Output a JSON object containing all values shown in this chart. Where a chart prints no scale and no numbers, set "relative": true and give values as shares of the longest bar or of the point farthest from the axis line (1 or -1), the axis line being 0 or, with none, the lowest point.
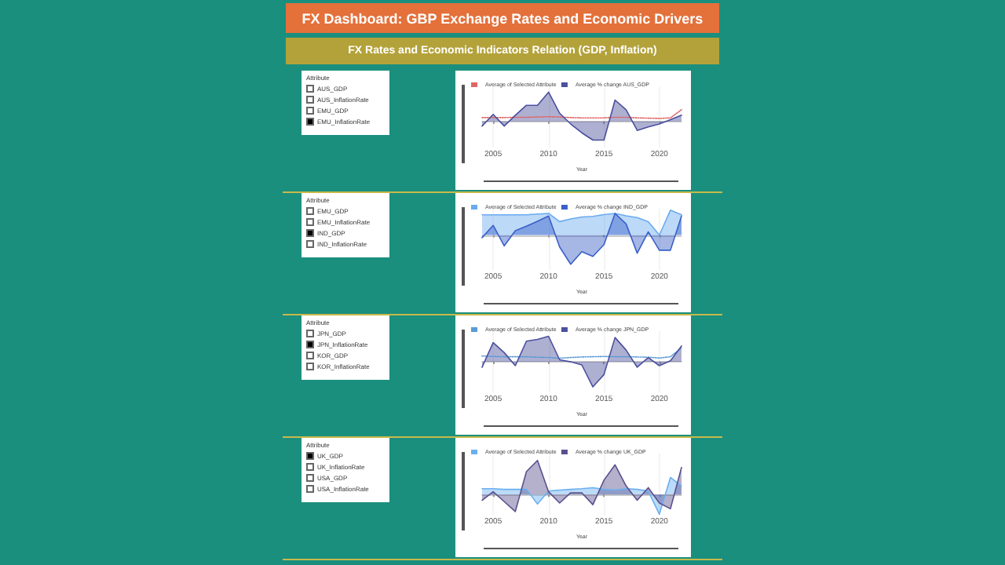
{
  "chart_data": [
    {
      "type": "other",
      "title": "FX Dashboard: GBP Exchange Rates and Economic Drivers",
      "subtitle": "FX Rates and Economic Indicators Relation (GDP, Inflation)",
      "legend_title": "Attribute",
      "categories": [
        "AUS_GDP",
        "AUS_InflationRate",
        "EMU_GDP",
        "EMU_InflationRate"
      ]
    },
    {
      "type": "line",
      "relative": true,
      "xlabel": "Year",
      "x": [
        2004,
        2005,
        2006,
        2007,
        2008,
        2009,
        2010,
        2011,
        2012,
        2013,
        2014,
        2015,
        2016,
        2017,
        2018,
        2019,
        2020,
        2021,
        2022
      ],
      "xlim": [
        2004,
        2022
      ],
      "xticks": [
        2005,
        2010,
        2015,
        2020
      ],
      "grid": "x",
      "legend": "top left",
      "marker": "none",
      "series": [
        {
          "name": "Average of Selected Attribute",
          "color": "#e06666",
          "line_style": "dotted",
          "values": [
            0.13,
            0.13,
            0.13,
            0.14,
            0.14,
            0.15,
            0.16,
            0.15,
            0.13,
            0.12,
            0.12,
            0.12,
            0.14,
            0.14,
            0.12,
            0.11,
            0.1,
            0.12,
            0.4
          ]
        },
        {
          "name": "Average % change AUS_GDP",
          "type": "area",
          "color": "#4b4f9c",
          "line_style": "solid",
          "values": [
            -0.16,
            0.24,
            -0.16,
            0.21,
            0.55,
            0.55,
            1,
            0.28,
            -0.09,
            -0.39,
            -0.64,
            -0.64,
            0.73,
            0.4,
            -0.31,
            -0.19,
            -0.09,
            0.06,
            0.21
          ]
        }
      ]
    },
    {
      "type": "other",
      "legend_title": "Attribute",
      "categories": [
        "EMU_GDP",
        "EMU_InflationRate",
        "IND_GDP",
        "IND_InflationRate"
      ]
    },
    {
      "type": "line",
      "relative": true,
      "xlabel": "Year",
      "x": [
        2004,
        2005,
        2006,
        2007,
        2008,
        2009,
        2010,
        2011,
        2012,
        2013,
        2014,
        2015,
        2016,
        2017,
        2018,
        2019,
        2020,
        2021,
        2022
      ],
      "xlim": [
        2004,
        2022
      ],
      "xticks": [
        2005,
        2010,
        2015,
        2020
      ],
      "grid": "x",
      "legend": "top left",
      "marker": "none",
      "series": [
        {
          "name": "Average of Selected Attribute",
          "type": "area",
          "color": "#6aaaf0",
          "line_style": "solid",
          "values": [
            0.69,
            0.69,
            0.69,
            0.69,
            0.69,
            0.72,
            0.74,
            0.46,
            0.55,
            0.62,
            0.64,
            0.7,
            0.74,
            0.66,
            0.6,
            0.46,
            0,
            0.85,
            0.69
          ]
        },
        {
          "name": "Average % change IND_GDP",
          "type": "area",
          "color": "#3a5fc8",
          "line_style": "solid",
          "values": [
            -0.09,
            0.33,
            -0.37,
            0.15,
            0.3,
            0.47,
            0.65,
            -0.41,
            -1,
            -0.57,
            -0.73,
            -0.33,
            0.74,
            0.38,
            -0.62,
            0.11,
            -0.52,
            -0.52,
            0.65
          ]
        }
      ]
    },
    {
      "type": "other",
      "legend_title": "Attribute",
      "categories": [
        "JPN_GDP",
        "JPN_InflationRate",
        "KOR_GDP",
        "KOR_InflationRate"
      ]
    },
    {
      "type": "line",
      "relative": true,
      "xlabel": "Year",
      "x": [
        2004,
        2005,
        2006,
        2007,
        2008,
        2009,
        2010,
        2011,
        2012,
        2013,
        2014,
        2015,
        2016,
        2017,
        2018,
        2019,
        2020,
        2021,
        2022
      ],
      "xlim": [
        2004,
        2022
      ],
      "xticks": [
        2005,
        2010,
        2015,
        2020
      ],
      "grid": "x",
      "legend": "top left",
      "marker": "none",
      "series": [
        {
          "name": "Average of Selected Attribute",
          "color": "#5b9bd5",
          "line_style": "dotted",
          "values": [
            0.23,
            0.21,
            0.2,
            0.2,
            0.2,
            0.18,
            0.17,
            0.14,
            0.17,
            0.19,
            0.2,
            0.21,
            0.2,
            0.2,
            0.19,
            0.18,
            0.15,
            0.2,
            0.55
          ]
        },
        {
          "name": "Average % change JPN_GDP",
          "type": "area",
          "color": "#4b4f9c",
          "line_style": "solid",
          "values": [
            -0.21,
            0.75,
            0.36,
            -0.15,
            0.81,
            0.88,
            1,
            0.08,
            0,
            -0.12,
            -0.98,
            -0.5,
            0.95,
            0.46,
            -0.21,
            0.17,
            -0.15,
            0.04,
            0.62
          ]
        }
      ]
    },
    {
      "type": "other",
      "legend_title": "Attribute",
      "categories": [
        "UK_GDP",
        "UK_InflationRate",
        "USA_GDP",
        "USA_InflationRate"
      ]
    },
    {
      "type": "line",
      "relative": true,
      "xlabel": "Year",
      "x": [
        2004,
        2005,
        2006,
        2007,
        2008,
        2009,
        2010,
        2011,
        2012,
        2013,
        2014,
        2015,
        2016,
        2017,
        2018,
        2019,
        2020,
        2021,
        2022
      ],
      "xlim": [
        2004,
        2022
      ],
      "xticks": [
        2005,
        2010,
        2015,
        2020
      ],
      "grid": "x",
      "legend": "top left",
      "marker": "none",
      "series": [
        {
          "name": "Average of Selected Attribute",
          "type": "area",
          "color": "#6ab0f0",
          "line_style": "solid",
          "values": [
            0.17,
            0.17,
            0.15,
            0.15,
            0.15,
            -0.28,
            0.1,
            0.13,
            0.15,
            0.17,
            0.2,
            0.15,
            0.13,
            0.17,
            0.15,
            0.1,
            -0.58,
            0.5,
            0.25
          ]
        },
        {
          "name": "Average % change UK_GDP",
          "type": "area",
          "color": "#5a4f8c",
          "line_style": "solid",
          "values": [
            -0.17,
            0.08,
            -0.21,
            -0.5,
            0.67,
            1,
            0.08,
            -0.25,
            0.05,
            0.05,
            -0.3,
            0.42,
            0.87,
            0.25,
            -0.17,
            0.2,
            -0.25,
            -0.42,
            0.79
          ]
        }
      ]
    }
  ]
}
